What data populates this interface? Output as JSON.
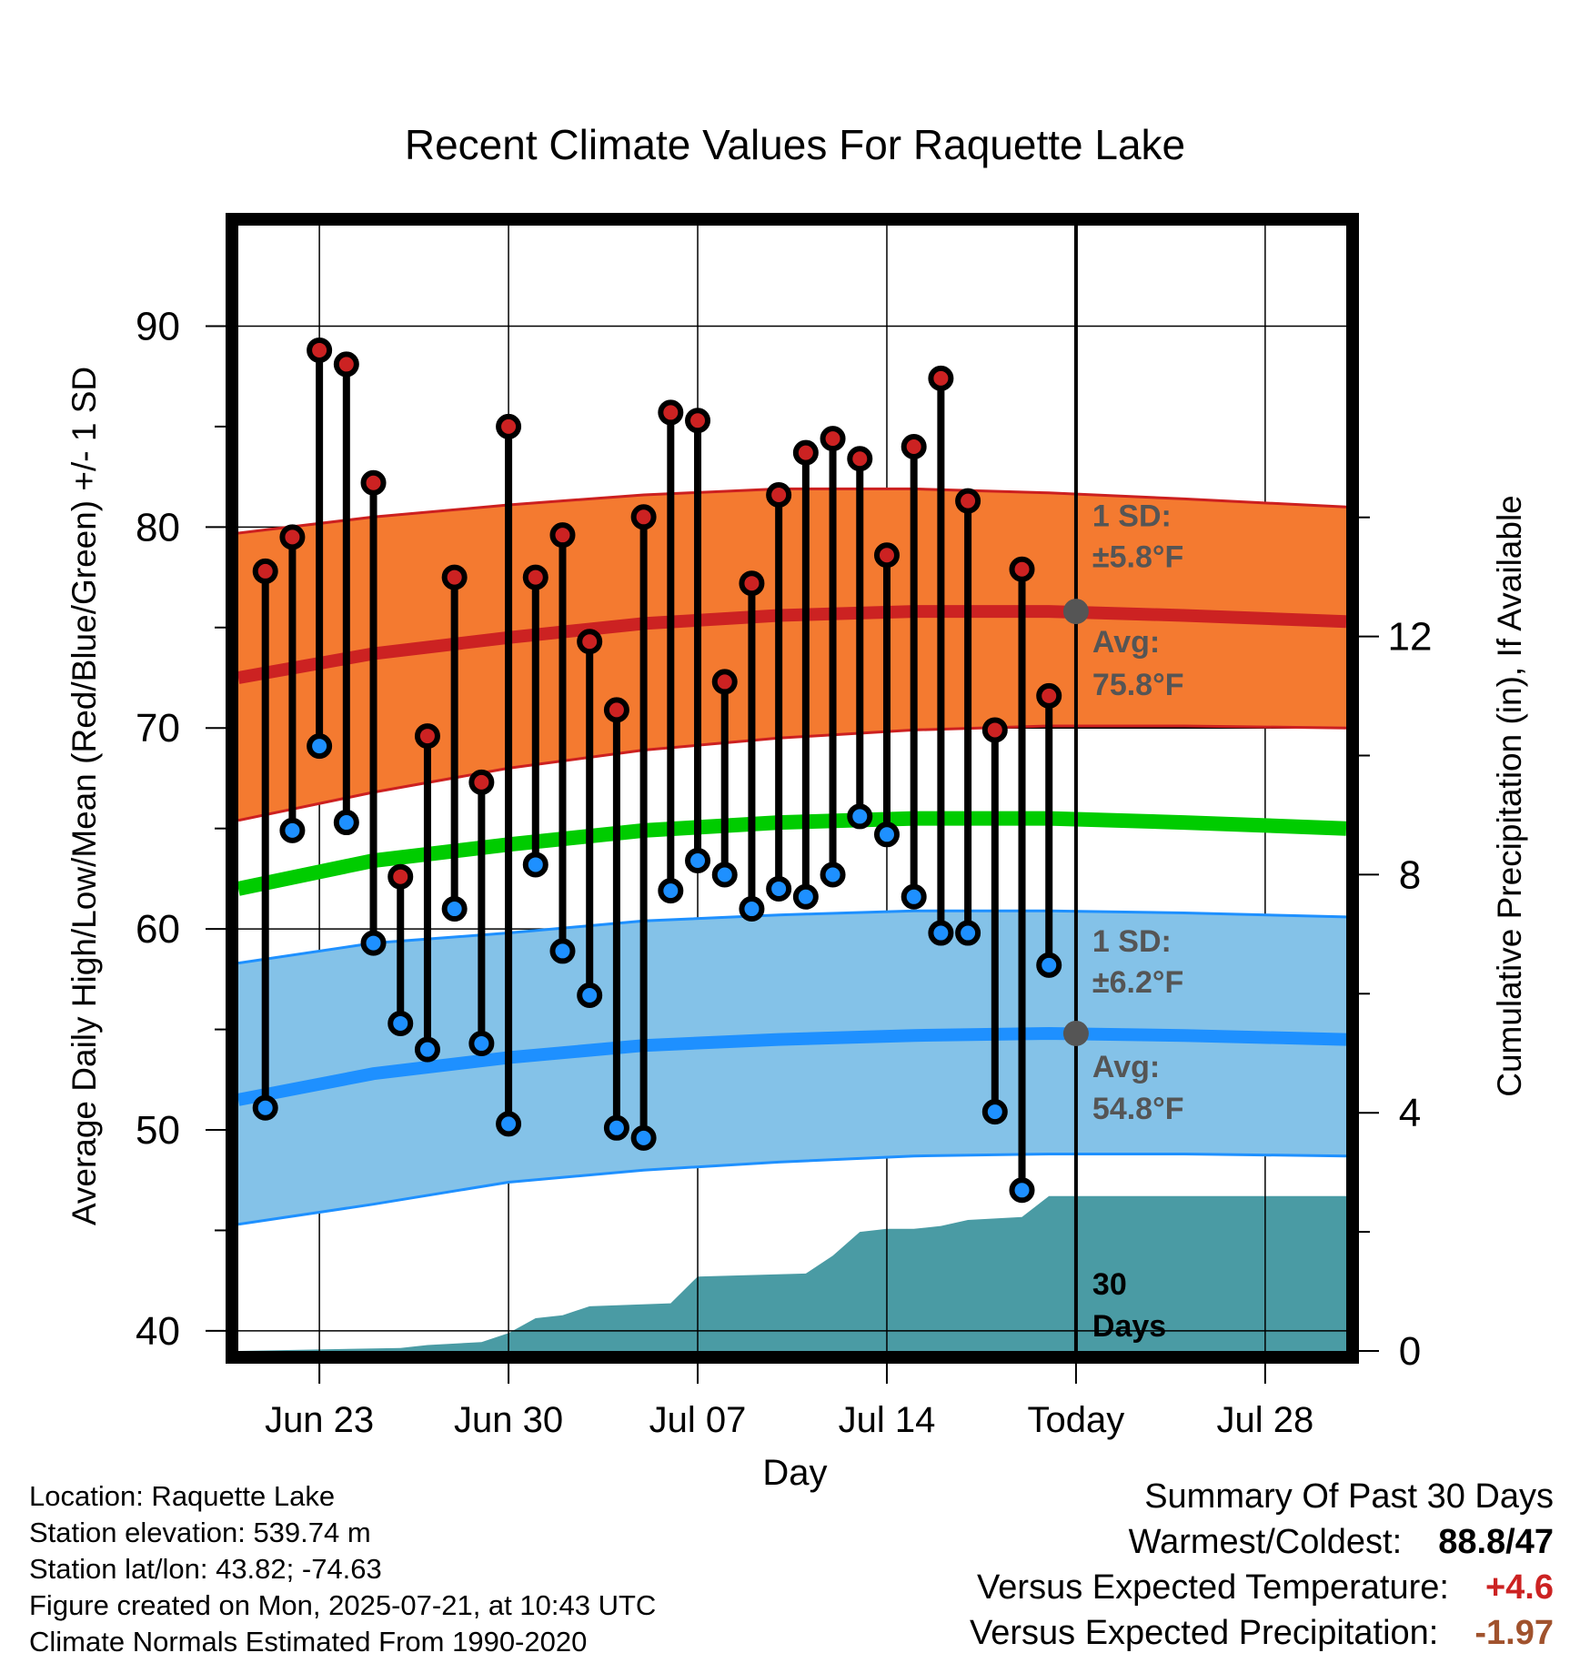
{
  "chart_data": {
    "type": "line",
    "title": "Recent Climate Values For Raquette Lake",
    "xlabel": "Day",
    "ylabel": "Average Daily High/Low/Mean (Red/Blue/Green) +/- 1 SD",
    "y2label": "Cumulative Precipitation (in), If Available",
    "xlim": [
      "2025-06-20",
      "2025-07-31"
    ],
    "ylim": [
      39,
      95
    ],
    "y2lim": [
      0,
      18.9
    ],
    "x_ticks": [
      {
        "date": "2025-06-23",
        "label": "Jun 23"
      },
      {
        "date": "2025-06-30",
        "label": "Jun 30"
      },
      {
        "date": "2025-07-07",
        "label": "Jul 07"
      },
      {
        "date": "2025-07-14",
        "label": "Jul 14"
      },
      {
        "date": "2025-07-21",
        "label": "Today"
      },
      {
        "date": "2025-07-28",
        "label": "Jul 28"
      }
    ],
    "y_ticks": [
      "40",
      "50",
      "60",
      "70",
      "80",
      "90"
    ],
    "y2_ticks": [
      "0",
      "4",
      "8",
      "12"
    ],
    "grid": true,
    "today": "2025-07-21",
    "daily_dates": [
      "2025-06-21",
      "2025-06-22",
      "2025-06-23",
      "2025-06-24",
      "2025-06-25",
      "2025-06-26",
      "2025-06-27",
      "2025-06-28",
      "2025-06-29",
      "2025-06-30",
      "2025-07-01",
      "2025-07-02",
      "2025-07-03",
      "2025-07-04",
      "2025-07-05",
      "2025-07-06",
      "2025-07-07",
      "2025-07-08",
      "2025-07-09",
      "2025-07-10",
      "2025-07-11",
      "2025-07-12",
      "2025-07-13",
      "2025-07-14",
      "2025-07-15",
      "2025-07-16",
      "2025-07-17",
      "2025-07-18",
      "2025-07-19",
      "2025-07-20"
    ],
    "daily_high": [
      77.8,
      79.5,
      88.8,
      88.1,
      82.2,
      62.6,
      69.6,
      77.5,
      67.3,
      85.0,
      77.5,
      79.6,
      74.3,
      70.9,
      80.5,
      85.7,
      85.3,
      72.3,
      77.2,
      81.6,
      83.7,
      84.4,
      83.4,
      78.6,
      84.0,
      87.4,
      81.3,
      69.9,
      77.9,
      71.6
    ],
    "daily_low": [
      51.1,
      64.9,
      69.1,
      65.3,
      59.3,
      55.3,
      54.0,
      61.0,
      54.3,
      50.3,
      63.2,
      58.9,
      56.7,
      50.1,
      49.6,
      61.9,
      63.4,
      62.7,
      61.0,
      62.0,
      61.6,
      62.7,
      65.6,
      64.7,
      61.6,
      59.8,
      59.8,
      50.9,
      47.0,
      58.2
    ],
    "normal_dates": [
      "2025-06-20",
      "2025-06-25",
      "2025-06-30",
      "2025-07-05",
      "2025-07-10",
      "2025-07-15",
      "2025-07-20",
      "2025-07-25",
      "2025-07-31"
    ],
    "normal_high": [
      72.5,
      73.7,
      74.5,
      75.2,
      75.6,
      75.8,
      75.8,
      75.6,
      75.3
    ],
    "normal_high_upper": [
      79.7,
      80.5,
      81.1,
      81.6,
      81.9,
      81.9,
      81.7,
      81.4,
      81.0
    ],
    "normal_high_lower": [
      65.4,
      66.8,
      68.0,
      68.9,
      69.5,
      69.9,
      70.1,
      70.1,
      70.0
    ],
    "normal_mean": [
      62.0,
      63.4,
      64.2,
      64.9,
      65.3,
      65.5,
      65.5,
      65.3,
      65.0
    ],
    "normal_low": [
      51.5,
      52.8,
      53.6,
      54.2,
      54.5,
      54.7,
      54.8,
      54.7,
      54.5
    ],
    "normal_low_upper": [
      58.3,
      59.3,
      59.8,
      60.4,
      60.7,
      60.9,
      60.9,
      60.8,
      60.6
    ],
    "normal_low_lower": [
      45.3,
      46.3,
      47.4,
      48.0,
      48.4,
      48.7,
      48.8,
      48.8,
      48.7
    ],
    "precip_dates": [
      "2025-06-20",
      "2025-06-26",
      "2025-06-27",
      "2025-06-29",
      "2025-06-30",
      "2025-07-01",
      "2025-07-02",
      "2025-07-03",
      "2025-07-06",
      "2025-07-07",
      "2025-07-11",
      "2025-07-12",
      "2025-07-13",
      "2025-07-14",
      "2025-07-15",
      "2025-07-16",
      "2025-07-17",
      "2025-07-19",
      "2025-07-20",
      "2025-07-31"
    ],
    "cumulative_precip": [
      0.0,
      0.05,
      0.1,
      0.15,
      0.3,
      0.55,
      0.6,
      0.75,
      0.8,
      1.25,
      1.3,
      1.6,
      2.0,
      2.05,
      2.05,
      2.1,
      2.2,
      2.25,
      2.6,
      2.6
    ],
    "annotations": {
      "high_sd": "1 SD:",
      "high_sd_value": "±5.8°F",
      "high_avg": "Avg:",
      "high_avg_value": "75.8°F",
      "low_sd": "1 SD:",
      "low_sd_value": "±6.2°F",
      "low_avg": "Avg:",
      "low_avg_value": "54.8°F",
      "precip_days_1": "30",
      "precip_days_2": "Days"
    },
    "colors": {
      "high_band": "#f47a30",
      "high_edge": "#cc2020",
      "high_line": "#cc2222",
      "mean_line": "#00cc00",
      "low_band": "#84c2e8",
      "low_edge": "#1e90ff",
      "low_line": "#1e90ff",
      "precip": "#4a9ba4",
      "high_dot": "#cc2222",
      "low_dot": "#1e90ff",
      "marker": "#555555"
    }
  },
  "info": {
    "location": "Location: Raquette Lake",
    "elevation": "Station elevation: 539.74 m",
    "latlon": "Station lat/lon: 43.82; -74.63",
    "created": "Figure created on Mon, 2025-07-21, at 10:43 UTC",
    "normals": "Climate Normals Estimated From 1990-2020"
  },
  "summary": {
    "title": "Summary Of Past 30 Days",
    "warmest_label": "Warmest/Coldest:",
    "warmest_value": "88.8",
    "coldest_value": "47",
    "temp_label": "Versus Expected Temperature:",
    "temp_value": "+4.6",
    "precip_label": "Versus Expected Precipitation:",
    "precip_value": "-1.97",
    "temp_color": "#cc2222",
    "precip_color": "#a0522d"
  }
}
